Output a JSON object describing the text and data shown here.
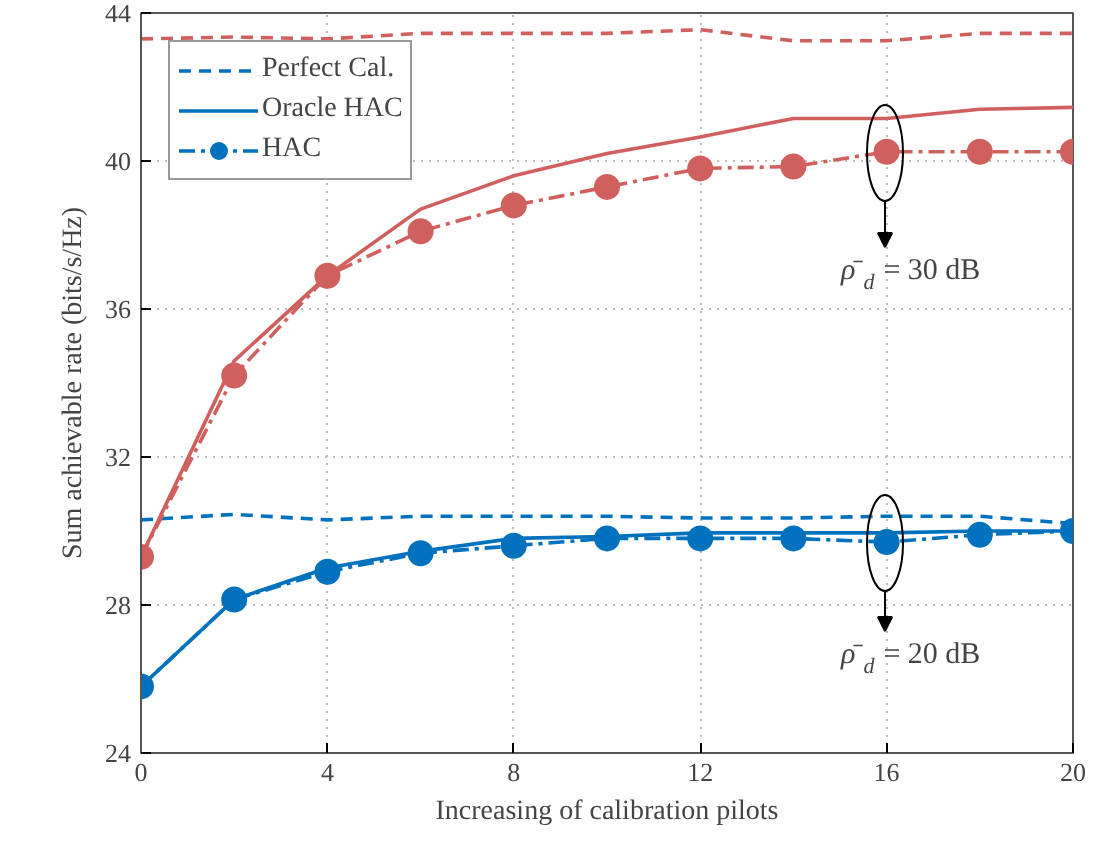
{
  "chart_data": {
    "type": "line",
    "xlabel": "Increasing of calibration pilots",
    "ylabel": "Sum achievable rate (bits/s/Hz)",
    "x": [
      0,
      2,
      4,
      6,
      8,
      10,
      12,
      14,
      16,
      18,
      20
    ],
    "xlim": [
      0,
      20
    ],
    "xticks": [
      0,
      4,
      8,
      12,
      16,
      20
    ],
    "ylim": [
      24,
      44
    ],
    "yticks": [
      24,
      28,
      32,
      36,
      40,
      44
    ],
    "grid": true,
    "legend": "top left",
    "series": [
      {
        "name": "Perfect Cal.",
        "color": "#0072bd",
        "line_style": "dashed",
        "marker": "none",
        "values": [
          30.3,
          30.45,
          30.3,
          30.4,
          30.4,
          30.4,
          30.35,
          30.35,
          30.4,
          30.4,
          30.2
        ]
      },
      {
        "name": "Oracle HAC",
        "color": "#0072bd",
        "line_style": "solid",
        "marker": "none",
        "values": [
          25.8,
          28.15,
          29.0,
          29.45,
          29.8,
          29.85,
          29.95,
          29.95,
          29.95,
          30.0,
          30.0
        ]
      },
      {
        "name": "HAC",
        "color": "#0072bd",
        "line_style": "dashdot",
        "marker": "circle",
        "values": [
          25.8,
          28.15,
          28.9,
          29.4,
          29.6,
          29.8,
          29.8,
          29.8,
          29.7,
          29.9,
          30.0
        ]
      },
      {
        "color": "#d0605e",
        "line_style": "dashed",
        "marker": "none",
        "values": [
          43.3,
          43.35,
          43.3,
          43.45,
          43.45,
          43.45,
          43.55,
          43.25,
          43.25,
          43.45,
          43.45
        ]
      },
      {
        "color": "#d0605e",
        "line_style": "solid",
        "marker": "none",
        "values": [
          29.3,
          34.6,
          36.9,
          38.7,
          39.6,
          40.2,
          40.65,
          41.15,
          41.15,
          41.4,
          41.45
        ]
      },
      {
        "color": "#d0605e",
        "line_style": "dashdot",
        "marker": "circle",
        "values": [
          29.3,
          34.2,
          36.9,
          38.1,
          38.8,
          39.3,
          39.8,
          39.85,
          40.25,
          40.25,
          40.25
        ]
      }
    ],
    "annotations": [
      "ρ̄$_{d}$ = 30 dB",
      "ρ̄$_{d}$ = 20 dB"
    ]
  }
}
